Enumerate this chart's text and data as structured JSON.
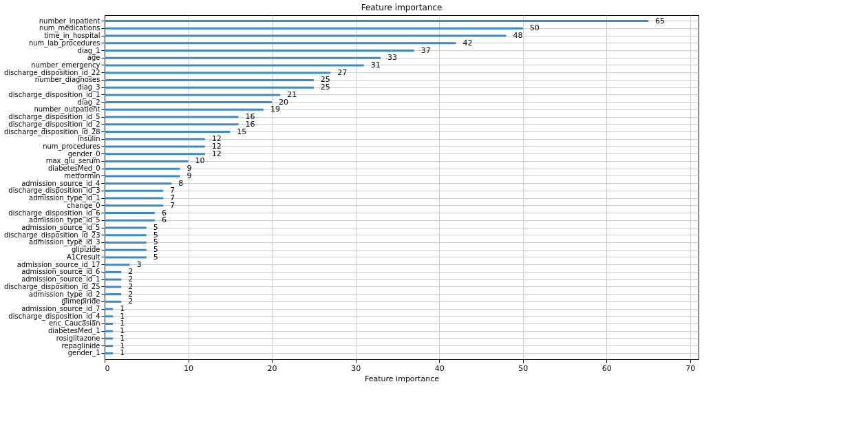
{
  "chart_data": {
    "type": "bar",
    "orientation": "horizontal",
    "title": "Feature importance",
    "xlabel": "Feature importance",
    "categories": [
      "number_inpatient",
      "num_medications",
      "time_in_hospital",
      "num_lab_procedures",
      "diag_1",
      "age",
      "number_emergency",
      "discharge_disposition_id_22",
      "number_diagnoses",
      "diag_3",
      "discharge_disposition_id_1",
      "diag_2",
      "number_outpatient",
      "discharge_disposition_id_5",
      "discharge_disposition_id_2",
      "discharge_disposition_id_28",
      "insulin",
      "num_procedures",
      "gender_0",
      "max_glu_serum",
      "diabetesMed_0",
      "metformin",
      "admission_source_id_4",
      "discharge_disposition_id_3",
      "admission_type_id_1",
      "change_0",
      "discharge_disposition_id_6",
      "admission_type_id_5",
      "admission_source_id_5",
      "discharge_disposition_id_23",
      "admission_type_id_3",
      "glipizide",
      "A1Cresult",
      "admission_source_id_17",
      "admission_source_id_6",
      "admission_source_id_1",
      "discharge_disposition_id_25",
      "admission_type_id_2",
      "glimepiride",
      "admission_source_id_7",
      "discharge_disposition_id_4",
      "enc_Caucasian",
      "diabetesMed_1",
      "rosiglitazone",
      "repaglinide",
      "gender_1"
    ],
    "values": [
      65,
      50,
      48,
      42,
      37,
      33,
      31,
      27,
      25,
      25,
      21,
      20,
      19,
      16,
      16,
      15,
      12,
      12,
      12,
      10,
      9,
      9,
      8,
      7,
      7,
      7,
      6,
      6,
      5,
      5,
      5,
      5,
      5,
      3,
      2,
      2,
      2,
      2,
      2,
      1,
      1,
      1,
      1,
      1,
      1,
      1
    ],
    "color": "#3d8bc6",
    "xlim": [
      0,
      71
    ],
    "xticks": [
      0,
      10,
      20,
      30,
      40,
      50,
      60,
      70
    ],
    "grid": true,
    "data_labels": true
  }
}
